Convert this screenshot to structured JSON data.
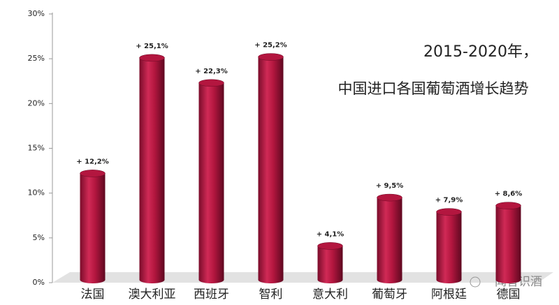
{
  "chart_data": {
    "type": "bar",
    "title_lines": [
      "2015-2020年，",
      "中国进口各国葡萄酒增长趋势"
    ],
    "categories": [
      "法国",
      "澳大利亚",
      "西班牙",
      "智利",
      "意大利",
      "葡萄牙",
      "阿根廷",
      "德国"
    ],
    "values": [
      12.2,
      25.1,
      22.3,
      25.2,
      4.1,
      9.5,
      7.9,
      8.6
    ],
    "value_labels": [
      "+ 12,2%",
      "+ 25,1%",
      "+ 22,3%",
      "+ 25,2%",
      "+ 4,1%",
      "+ 9,5%",
      "+ 7,9%",
      "+ 8,6%"
    ],
    "color": "#b3163f",
    "ylim": [
      0,
      30
    ],
    "yticks": [
      {
        "value": 0,
        "label": "0%"
      },
      {
        "value": 5,
        "label": "5%"
      },
      {
        "value": 10,
        "label": "10%"
      },
      {
        "value": 15,
        "label": "15%"
      },
      {
        "value": 20,
        "label": "20%"
      },
      {
        "value": 25,
        "label": "25%"
      },
      {
        "value": 30,
        "label": "30%"
      }
    ],
    "watermark": "闻香识酒"
  }
}
